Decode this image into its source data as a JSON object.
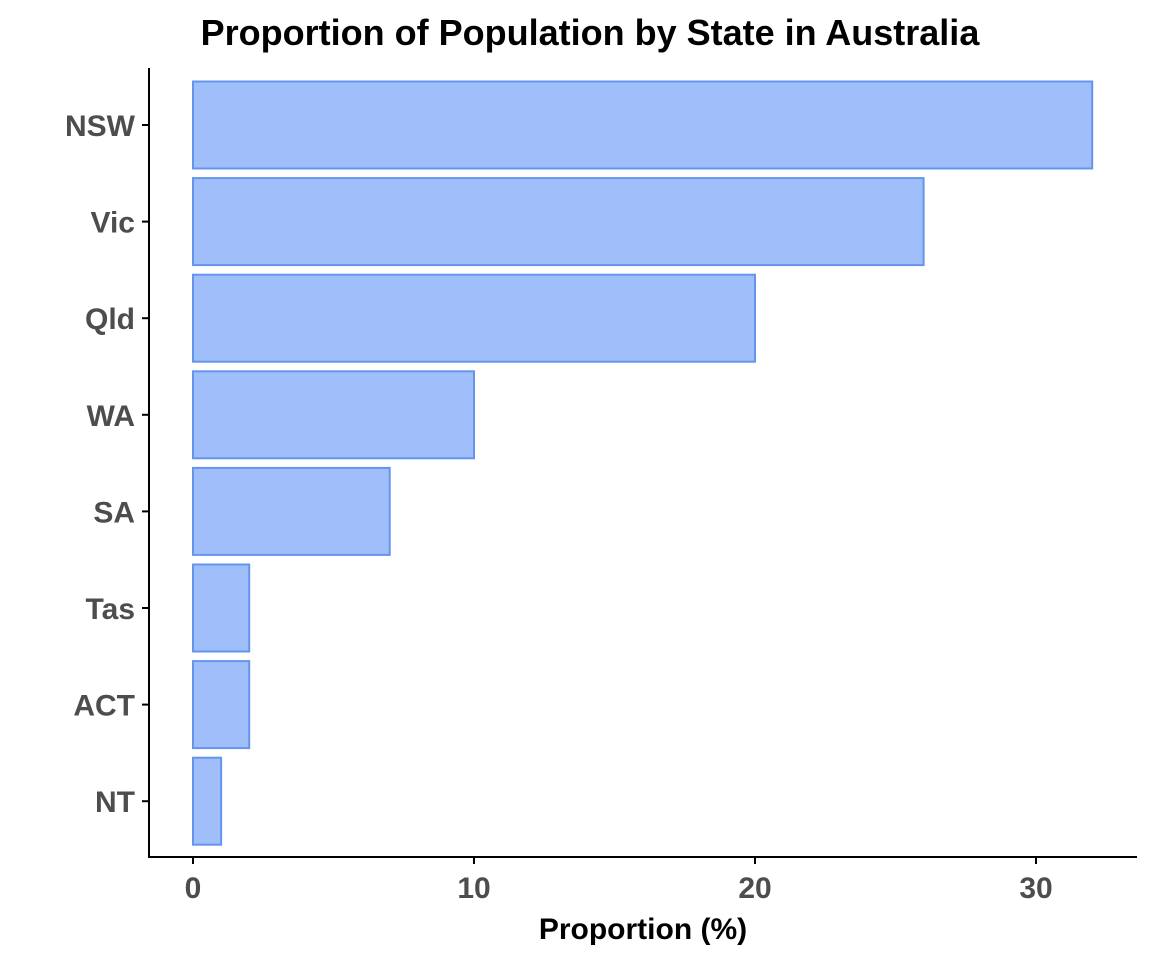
{
  "chart_data": {
    "type": "bar",
    "orientation": "horizontal",
    "title": "Proportion of Population by State in Australia",
    "xlabel": "Proportion (%)",
    "ylabel": "",
    "categories": [
      "NSW",
      "Vic",
      "Qld",
      "WA",
      "SA",
      "Tas",
      "ACT",
      "NT"
    ],
    "values": [
      32,
      26,
      20,
      10,
      7,
      2,
      2,
      1
    ],
    "xlim": [
      0,
      33
    ],
    "xticks": [
      0,
      10,
      20,
      30
    ],
    "xtick_labels": [
      "0",
      "10",
      "20",
      "30"
    ],
    "grid": false,
    "legend": "none",
    "colors": {
      "bar_fill": "#a0befa",
      "bar_stroke": "#6495ed"
    }
  }
}
